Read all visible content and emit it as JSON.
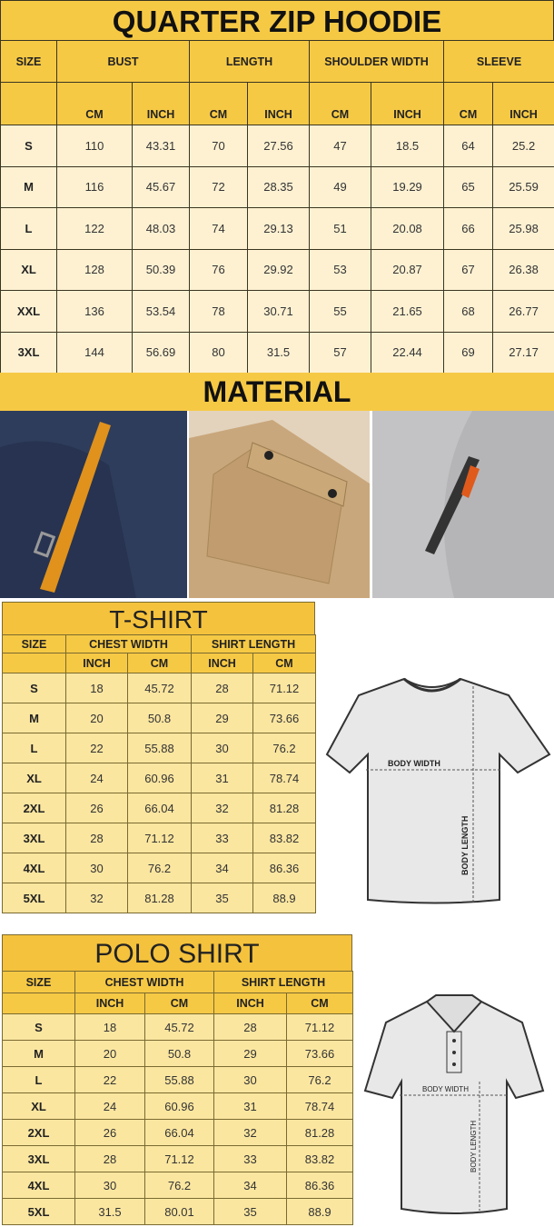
{
  "hoodie": {
    "title": "QUARTER ZIP HOODIE",
    "size_label": "SIZE",
    "groups": [
      "BUST",
      "LENGTH",
      "SHOULDER WIDTH",
      "SLEEVE"
    ],
    "units": [
      "CM",
      "INCH",
      "CM",
      "INCH",
      "CM",
      "INCH",
      "CM",
      "INCH"
    ],
    "rows": [
      [
        "S",
        "110",
        "43.31",
        "70",
        "27.56",
        "47",
        "18.5",
        "64",
        "25.2"
      ],
      [
        "M",
        "116",
        "45.67",
        "72",
        "28.35",
        "49",
        "19.29",
        "65",
        "25.59"
      ],
      [
        "L",
        "122",
        "48.03",
        "74",
        "29.13",
        "51",
        "20.08",
        "66",
        "25.98"
      ],
      [
        "XL",
        "128",
        "50.39",
        "76",
        "29.92",
        "53",
        "20.87",
        "67",
        "26.38"
      ],
      [
        "XXL",
        "136",
        "53.54",
        "78",
        "30.71",
        "55",
        "21.65",
        "68",
        "26.77"
      ],
      [
        "3XL",
        "144",
        "56.69",
        "80",
        "31.5",
        "57",
        "22.44",
        "69",
        "27.17"
      ]
    ]
  },
  "material": {
    "title": "MATERIAL",
    "photo_colors": [
      "#2f3d5c",
      "#c9a77c",
      "#b5b5b7"
    ],
    "accent": "#e0921c"
  },
  "tshirt": {
    "title": "T-SHIRT",
    "size_label": "SIZE",
    "groups": [
      "CHEST WIDTH",
      "SHIRT LENGTH"
    ],
    "units": [
      "INCH",
      "CM",
      "INCH",
      "CM"
    ],
    "rows": [
      [
        "S",
        "18",
        "45.72",
        "28",
        "71.12"
      ],
      [
        "M",
        "20",
        "50.8",
        "29",
        "73.66"
      ],
      [
        "L",
        "22",
        "55.88",
        "30",
        "76.2"
      ],
      [
        "XL",
        "24",
        "60.96",
        "31",
        "78.74"
      ],
      [
        "2XL",
        "26",
        "66.04",
        "32",
        "81.28"
      ],
      [
        "3XL",
        "28",
        "71.12",
        "33",
        "83.82"
      ],
      [
        "4XL",
        "30",
        "76.2",
        "34",
        "86.36"
      ],
      [
        "5XL",
        "32",
        "81.28",
        "35",
        "88.9"
      ]
    ],
    "diagram": {
      "width_label": "BODY WIDTH",
      "length_label": "BODY LENGTH"
    }
  },
  "polo": {
    "title": "POLO SHIRT",
    "size_label": "SIZE",
    "groups": [
      "CHEST WIDTH",
      "SHIRT LENGTH"
    ],
    "units": [
      "INCH",
      "CM",
      "INCH",
      "CM"
    ],
    "rows": [
      [
        "S",
        "18",
        "45.72",
        "28",
        "71.12"
      ],
      [
        "M",
        "20",
        "50.8",
        "29",
        "73.66"
      ],
      [
        "L",
        "22",
        "55.88",
        "30",
        "76.2"
      ],
      [
        "XL",
        "24",
        "60.96",
        "31",
        "78.74"
      ],
      [
        "2XL",
        "26",
        "66.04",
        "32",
        "81.28"
      ],
      [
        "3XL",
        "28",
        "71.12",
        "33",
        "83.82"
      ],
      [
        "4XL",
        "30",
        "76.2",
        "34",
        "86.36"
      ],
      [
        "5XL",
        "31.5",
        "80.01",
        "35",
        "88.9"
      ]
    ],
    "diagram": {
      "width_label": "BODY WIDTH",
      "length_label": "BODY LENGTH"
    }
  }
}
